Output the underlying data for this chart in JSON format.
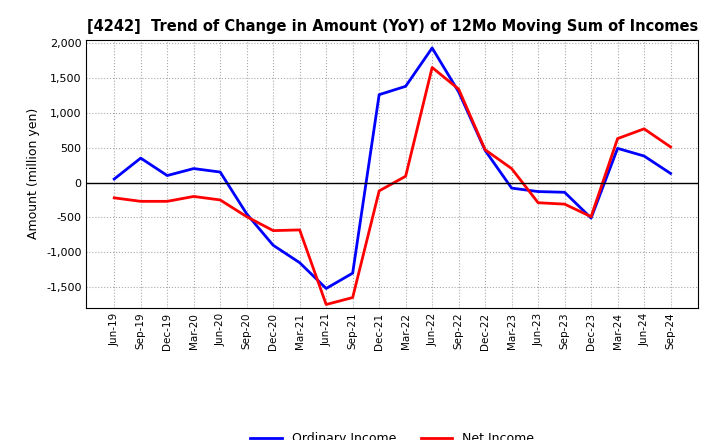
{
  "title": "[4242]  Trend of Change in Amount (YoY) of 12Mo Moving Sum of Incomes",
  "ylabel": "Amount (million yen)",
  "labels": [
    "Jun-19",
    "Sep-19",
    "Dec-19",
    "Mar-20",
    "Jun-20",
    "Sep-20",
    "Dec-20",
    "Mar-21",
    "Jun-21",
    "Sep-21",
    "Dec-21",
    "Mar-22",
    "Jun-22",
    "Sep-22",
    "Dec-22",
    "Mar-23",
    "Jun-23",
    "Sep-23",
    "Dec-23",
    "Mar-24",
    "Jun-24",
    "Sep-24"
  ],
  "ordinary_income": [
    50,
    350,
    100,
    200,
    150,
    -450,
    -900,
    -1150,
    -1520,
    -1300,
    1260,
    1380,
    1930,
    1300,
    460,
    -80,
    -130,
    -140,
    -510,
    490,
    380,
    130
  ],
  "net_income": [
    -220,
    -270,
    -270,
    -200,
    -250,
    -490,
    -690,
    -680,
    -1750,
    -1650,
    -120,
    90,
    1650,
    1340,
    470,
    200,
    -290,
    -310,
    -490,
    630,
    770,
    510
  ],
  "ordinary_color": "#0000FF",
  "net_color": "#FF0000",
  "ylim": [
    -1750,
    2000
  ],
  "yticks": [
    -1500,
    -1000,
    -500,
    0,
    500,
    1000,
    1500,
    2000
  ],
  "legend_labels": [
    "Ordinary Income",
    "Net Income"
  ],
  "background_color": "#FFFFFF",
  "plot_bg_color": "#FFFFFF",
  "grid_color": "#AAAAAA"
}
